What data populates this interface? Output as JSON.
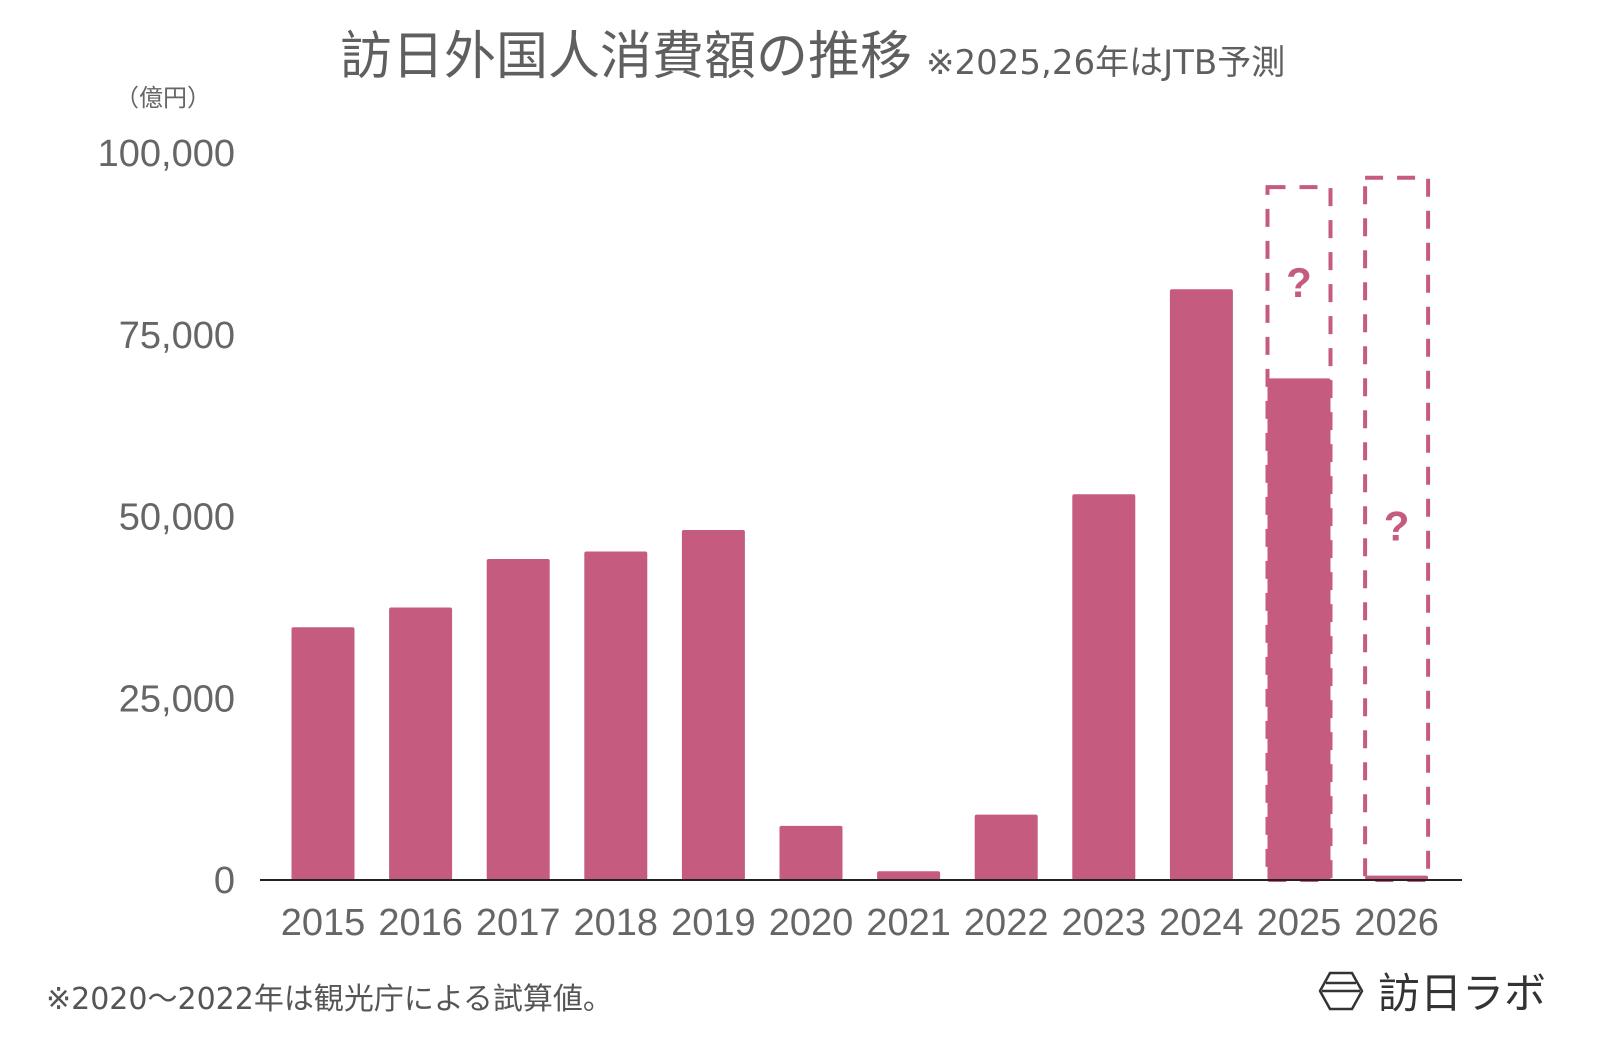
{
  "title": "訪日外国人消費額の推移",
  "subtitle": "※2025,26年はJTB予測",
  "unit": "（億円）",
  "note": "※2020〜2022年は観光庁による試算値。",
  "logo": {
    "text": "訪日ラボ",
    "icon": "hexagon-logo-icon"
  },
  "colors": {
    "bar": "#c55b7e",
    "text": "#666666",
    "axis": "#222222"
  },
  "chart_data": {
    "type": "bar",
    "title": "訪日外国人消費額の推移",
    "ylabel": "（億円）",
    "categories": [
      "2015",
      "2016",
      "2017",
      "2018",
      "2019",
      "2020",
      "2021",
      "2022",
      "2023",
      "2024",
      "2025",
      "2026"
    ],
    "values": [
      34771,
      37476,
      44162,
      45189,
      48135,
      7446,
      1208,
      8987,
      53065,
      81257,
      69000,
      600
    ],
    "forecast_upper": {
      "2025": 95300,
      "2026": 96600
    },
    "forecast_label": "?",
    "ylim": [
      0,
      100000
    ],
    "yticks": [
      0,
      25000,
      50000,
      75000,
      100000
    ],
    "ytick_labels": [
      "0",
      "25,000",
      "50,000",
      "75,000",
      "100,000"
    ],
    "grid": false,
    "legend": "none"
  }
}
